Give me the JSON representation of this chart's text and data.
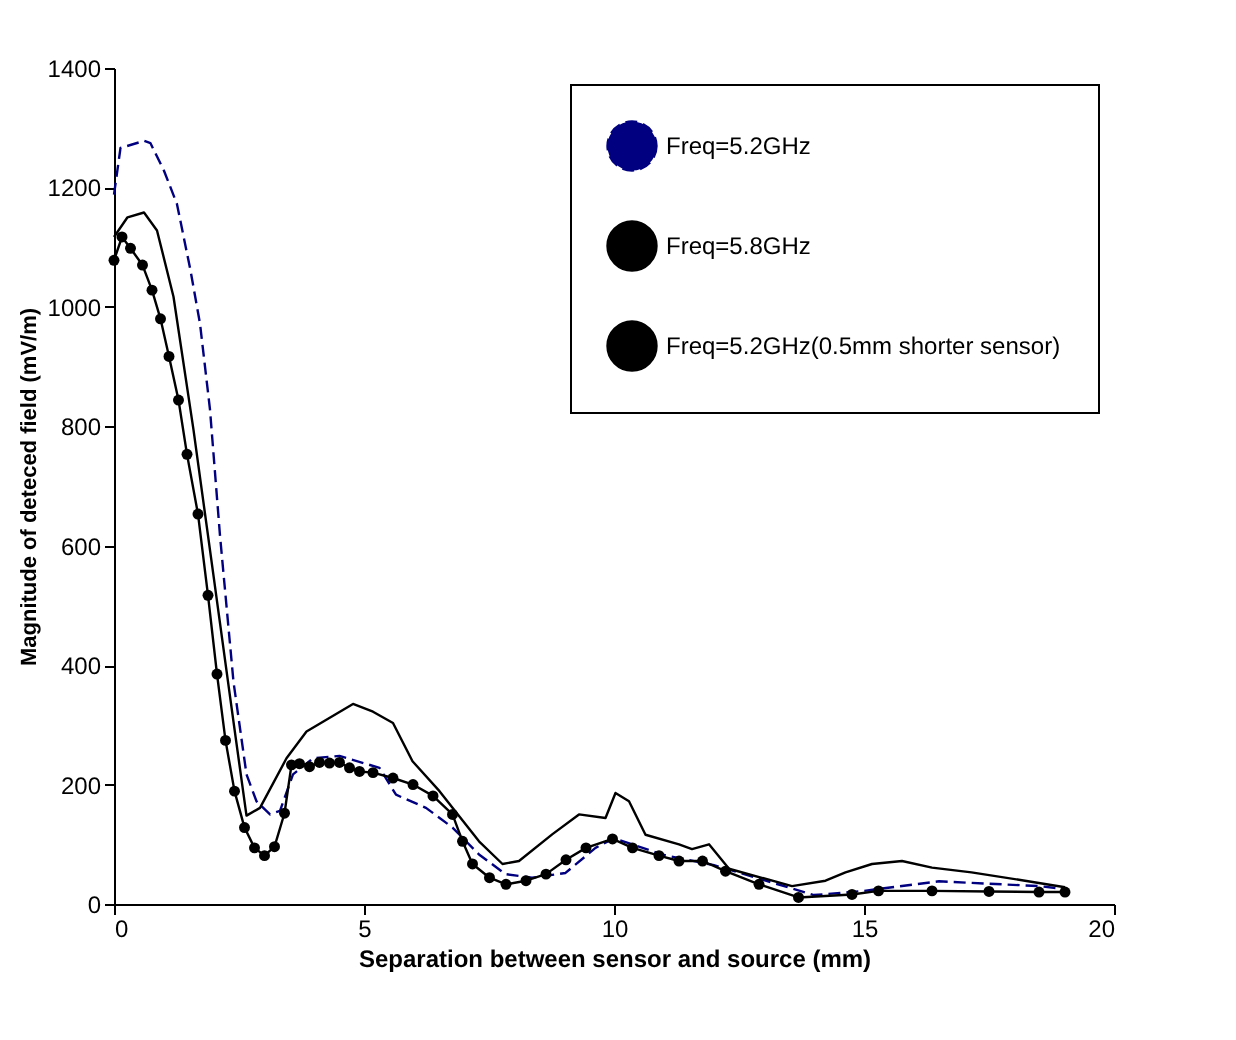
{
  "chart_data": {
    "type": "line",
    "xlabel": "Separation between sensor and source (mm)",
    "ylabel": "Magnitude of deteced field (mV/m)",
    "xlim": [
      0,
      20
    ],
    "ylim": [
      0,
      1400
    ],
    "xticks": [
      0,
      5,
      10,
      15,
      20
    ],
    "yticks": [
      0,
      200,
      400,
      600,
      800,
      1000,
      1200,
      1400
    ],
    "grid": false,
    "legend": "top right",
    "series": [
      {
        "name": "Freq=5.2GHz",
        "color": "#000080",
        "line_style": "dashed",
        "x": [
          0,
          0.13,
          0.6,
          0.73,
          1.0,
          1.26,
          1.53,
          1.72,
          1.92,
          2.12,
          2.39,
          2.65,
          2.85,
          3.12,
          3.32,
          3.58,
          3.98,
          4.51,
          5.31,
          5.64,
          6.24,
          6.77,
          7.3,
          7.83,
          8.36,
          9.03,
          9.63,
          10.0,
          11.0,
          12.0,
          13.0,
          14.0,
          15.0,
          16.5,
          18.5,
          19.0
        ],
        "values": [
          1188,
          1266,
          1278,
          1274,
          1228,
          1172,
          1061,
          972,
          828,
          617,
          372,
          217,
          172,
          150,
          156,
          217,
          244,
          248,
          228,
          183,
          161,
          128,
          83,
          50,
          44,
          52,
          94,
          110,
          82,
          65,
          40,
          15,
          22,
          38,
          30,
          25
        ]
      },
      {
        "name": "Freq=5.8GHz",
        "color": "#000000",
        "line_style": "solid",
        "x": [
          0,
          0.27,
          0.6,
          0.86,
          1.19,
          1.59,
          1.99,
          2.39,
          2.65,
          2.92,
          3.45,
          3.85,
          4.78,
          5.18,
          5.58,
          5.97,
          6.51,
          7.3,
          7.77,
          8.1,
          8.77,
          9.3,
          9.83,
          10.03,
          10.3,
          10.63,
          11.3,
          11.56,
          11.9,
          12.3,
          13.56,
          14.23,
          14.63,
          15.16,
          15.76,
          16.36,
          17.15,
          18.22,
          19.02
        ],
        "values": [
          1117,
          1150,
          1158,
          1128,
          1017,
          794,
          550,
          305,
          148,
          161,
          244,
          289,
          335,
          322,
          303,
          239,
          189,
          105,
          67,
          72,
          117,
          150,
          144,
          186,
          172,
          116,
          100,
          92,
          100,
          59,
          30,
          39,
          53,
          67,
          72,
          61,
          53,
          39,
          28
        ]
      },
      {
        "name": "Freq=5.2GHz(0.5mm shorter sensor)",
        "color": "#000000",
        "line_style": "solid",
        "marker": "circle",
        "x": [
          0,
          0.16,
          0.33,
          0.57,
          0.76,
          0.93,
          1.1,
          1.29,
          1.46,
          1.68,
          1.88,
          2.06,
          2.23,
          2.41,
          2.61,
          2.81,
          3.01,
          3.21,
          3.41,
          3.55,
          3.71,
          3.91,
          4.11,
          4.31,
          4.51,
          4.71,
          4.91,
          5.18,
          5.58,
          5.98,
          6.38,
          6.77,
          6.97,
          7.17,
          7.51,
          7.84,
          8.24,
          8.64,
          9.04,
          9.44,
          9.97,
          10.37,
          10.9,
          11.3,
          11.77,
          12.23,
          12.9,
          13.69,
          14.76,
          15.29,
          16.36,
          17.5,
          18.5,
          19.02
        ],
        "values": [
          1078,
          1117,
          1098,
          1070,
          1028,
          980,
          917,
          844,
          753,
          653,
          517,
          385,
          274,
          189,
          128,
          94,
          81,
          96,
          152,
          233,
          235,
          230,
          237,
          236,
          237,
          228,
          222,
          220,
          211,
          200,
          181,
          150,
          105,
          67,
          44,
          33,
          39,
          50,
          74,
          94,
          109,
          94,
          81,
          72,
          72,
          55,
          33,
          11,
          16,
          22,
          22,
          21,
          20,
          20
        ]
      }
    ]
  }
}
